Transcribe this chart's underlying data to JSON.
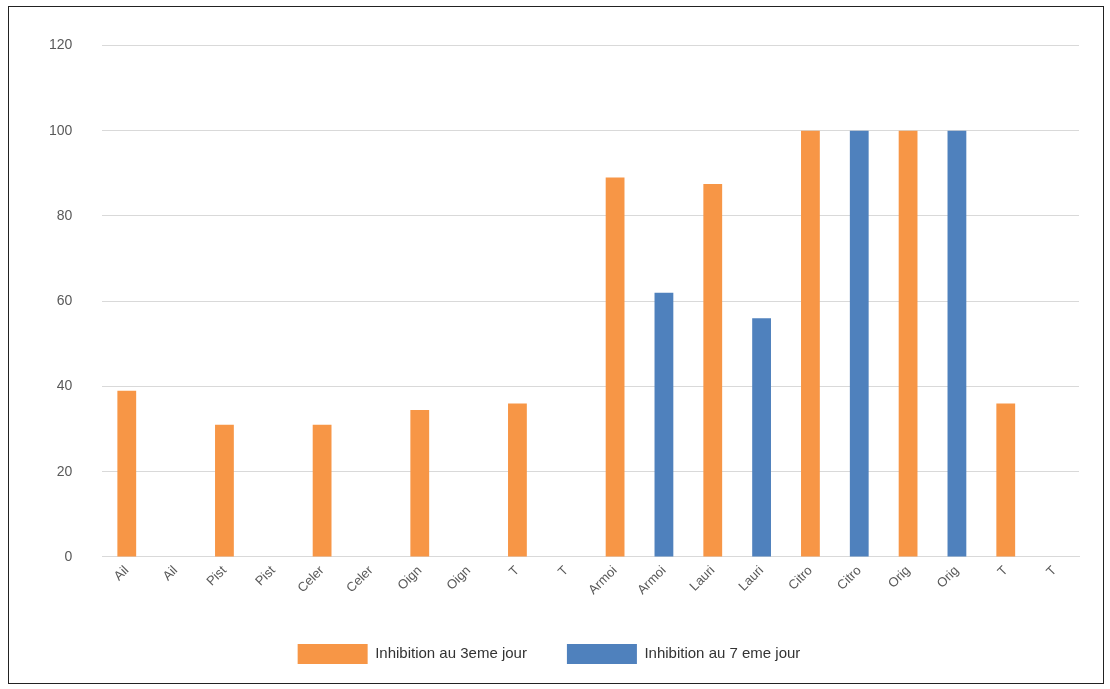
{
  "chart_data": {
    "type": "bar",
    "categories": [
      "Ail",
      "Ail",
      "Pist",
      "Pist",
      "Celer",
      "Celer",
      "Oign",
      "Oign",
      "T",
      "T",
      "Armoi",
      "Armoi",
      "Lauri",
      "Lauri",
      "Citro",
      "Citro",
      "Orig",
      "Orig",
      "T",
      "T"
    ],
    "series": [
      {
        "name": "Inhibition au 3eme jour",
        "color": "#f79646",
        "values": [
          39,
          null,
          31,
          null,
          31,
          null,
          34.5,
          null,
          36,
          null,
          89,
          null,
          87.5,
          null,
          100,
          null,
          100,
          null,
          36,
          null
        ]
      },
      {
        "name": "Inhibition au 7 eme jour",
        "color": "#4f81bd",
        "values": [
          null,
          null,
          null,
          null,
          null,
          null,
          null,
          null,
          null,
          null,
          null,
          62,
          null,
          56,
          null,
          100,
          null,
          100,
          null,
          null
        ]
      }
    ],
    "ylim": [
      0,
      120
    ],
    "yticks": [
      0,
      20,
      40,
      60,
      80,
      100,
      120
    ],
    "grid": "y",
    "legend": "bottom"
  }
}
